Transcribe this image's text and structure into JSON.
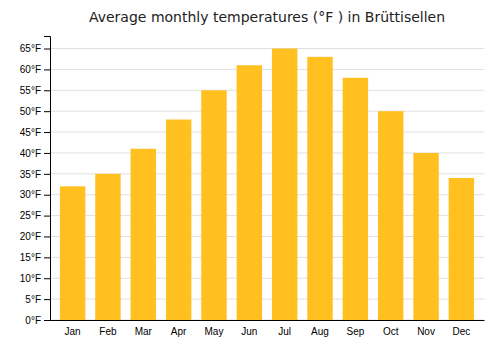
{
  "chart_data": {
    "type": "bar",
    "title": "Average monthly temperatures (°F ) in Brüttisellen",
    "categories": [
      "Jan",
      "Feb",
      "Mar",
      "Apr",
      "May",
      "Jun",
      "Jul",
      "Aug",
      "Sep",
      "Oct",
      "Nov",
      "Dec"
    ],
    "values": [
      32,
      35,
      41,
      48,
      55,
      61,
      65,
      63,
      58,
      50,
      40,
      34
    ],
    "color": "#FFC020",
    "ylim": [
      0,
      68
    ],
    "yticks": [
      {
        "value": 0,
        "label": "0°F"
      },
      {
        "value": 5,
        "label": "5°F"
      },
      {
        "value": 10,
        "label": "10°F"
      },
      {
        "value": 15,
        "label": "15°F"
      },
      {
        "value": 20,
        "label": "20°F"
      },
      {
        "value": 25,
        "label": "25°F"
      },
      {
        "value": 30,
        "label": "30°F"
      },
      {
        "value": 35,
        "label": "35°F"
      },
      {
        "value": 40,
        "label": "40°F"
      },
      {
        "value": 45,
        "label": "45°F"
      },
      {
        "value": 50,
        "label": "50°F"
      },
      {
        "value": 55,
        "label": "55°F"
      },
      {
        "value": 60,
        "label": "60°F"
      },
      {
        "value": 65,
        "label": "65°F"
      }
    ],
    "grid": true
  }
}
